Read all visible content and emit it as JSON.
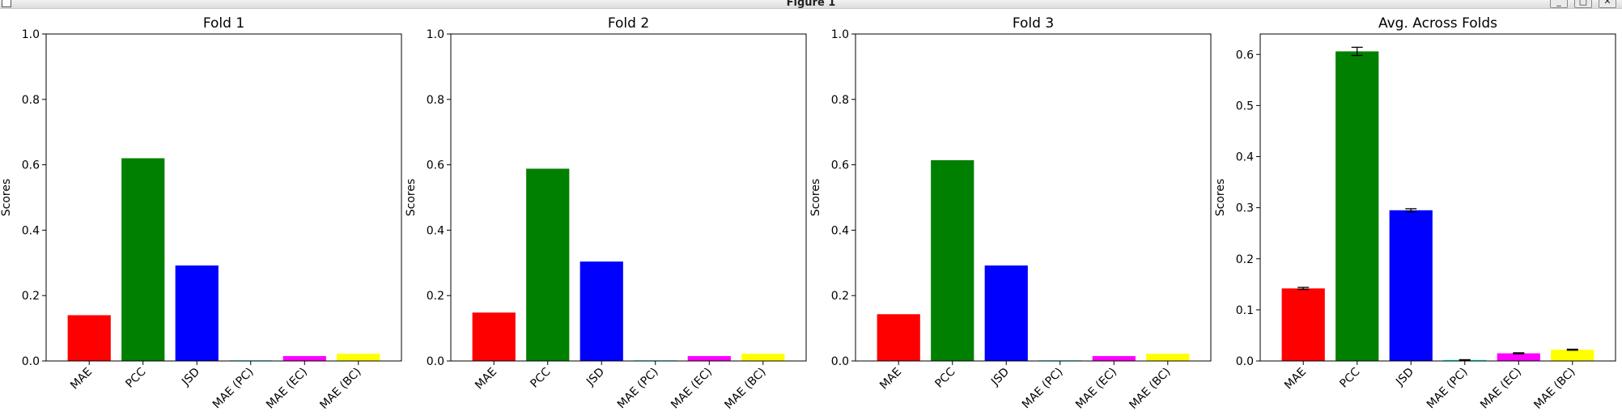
{
  "window": {
    "title": "Figure 1",
    "minimize_glyph": "_",
    "maximize_glyph": "□",
    "close_glyph": "✕"
  },
  "colors": {
    "MAE": "#ff0000",
    "PCC": "#008000",
    "JSD": "#0000ff",
    "MAE (PC)": "#00ffff",
    "MAE (EC)": "#ff00ff",
    "MAE (BC)": "#ffff00"
  },
  "chart_data": [
    {
      "type": "bar",
      "title": "Fold 1",
      "ylabel": "Scores",
      "categories": [
        "MAE",
        "PCC",
        "JSD",
        "MAE (PC)",
        "MAE (EC)",
        "MAE (BC)"
      ],
      "values": [
        0.14,
        0.62,
        0.292,
        0.002,
        0.015,
        0.022
      ],
      "ylim": [
        0,
        1.0
      ],
      "yticks": [
        0.0,
        0.2,
        0.4,
        0.6,
        0.8,
        1.0
      ],
      "grid": false
    },
    {
      "type": "bar",
      "title": "Fold 2",
      "ylabel": "Scores",
      "categories": [
        "MAE",
        "PCC",
        "JSD",
        "MAE (PC)",
        "MAE (EC)",
        "MAE (BC)"
      ],
      "values": [
        0.148,
        0.588,
        0.304,
        0.002,
        0.015,
        0.022
      ],
      "ylim": [
        0,
        1.0
      ],
      "yticks": [
        0.0,
        0.2,
        0.4,
        0.6,
        0.8,
        1.0
      ],
      "grid": false
    },
    {
      "type": "bar",
      "title": "Fold 3",
      "ylabel": "Scores",
      "categories": [
        "MAE",
        "PCC",
        "JSD",
        "MAE (PC)",
        "MAE (EC)",
        "MAE (BC)"
      ],
      "values": [
        0.143,
        0.614,
        0.292,
        0.002,
        0.015,
        0.022
      ],
      "ylim": [
        0,
        1.0
      ],
      "yticks": [
        0.0,
        0.2,
        0.4,
        0.6,
        0.8,
        1.0
      ],
      "grid": false
    },
    {
      "type": "bar",
      "title": "Avg. Across Folds",
      "ylabel": "Scores",
      "categories": [
        "MAE",
        "PCC",
        "JSD",
        "MAE (PC)",
        "MAE (EC)",
        "MAE (BC)"
      ],
      "values": [
        0.142,
        0.606,
        0.295,
        0.002,
        0.015,
        0.022
      ],
      "errors": [
        0.002,
        0.008,
        0.003,
        0.0005,
        0.001,
        0.001
      ],
      "ylim": [
        0,
        0.64
      ],
      "yticks": [
        0.0,
        0.1,
        0.2,
        0.3,
        0.4,
        0.5,
        0.6
      ],
      "grid": false
    }
  ]
}
